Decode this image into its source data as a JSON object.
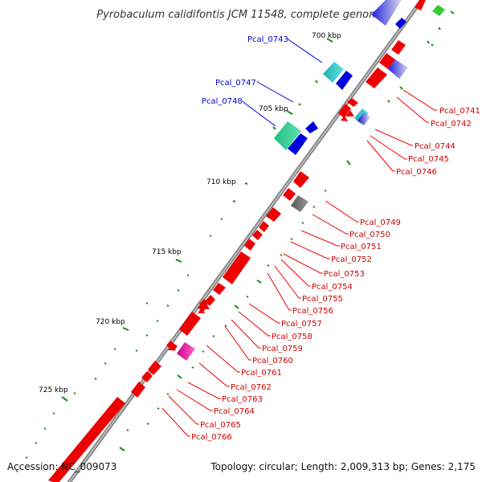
{
  "title": "Pyrobaculum calidifontis JCM 11548, complete genome",
  "footer": {
    "accession": "Accession: NC_009073",
    "topology": "Topology: circular; Length: 2,009,313 bp; Genes: 2,175"
  },
  "colors": {
    "backbone": "#888888",
    "tick": "#1a8a1a",
    "forward_gene": "#ee0000",
    "reverse_gene": "#0000dd",
    "red_label": "#cc0000",
    "blue_label": "#0000cc"
  },
  "kbp_labels": [
    "700 kbp",
    "705 kbp",
    "710 kbp",
    "715 kbp",
    "720 kbp",
    "725 kbp"
  ],
  "genes_red": [
    "Pcal_0741",
    "Pcal_0742",
    "Pcal_0744",
    "Pcal_0745",
    "Pcal_0746",
    "Pcal_0749",
    "Pcal_0750",
    "Pcal_0751",
    "Pcal_0752",
    "Pcal_0753",
    "Pcal_0754",
    "Pcal_0755",
    "Pcal_0756",
    "Pcal_0757",
    "Pcal_0758",
    "Pcal_0759",
    "Pcal_0760",
    "Pcal_0761",
    "Pcal_0762",
    "Pcal_0763",
    "Pcal_0764",
    "Pcal_0765",
    "Pcal_0766"
  ],
  "genes_blue": [
    "Pcal_0743",
    "Pcal_0747",
    "Pcal_0748"
  ]
}
